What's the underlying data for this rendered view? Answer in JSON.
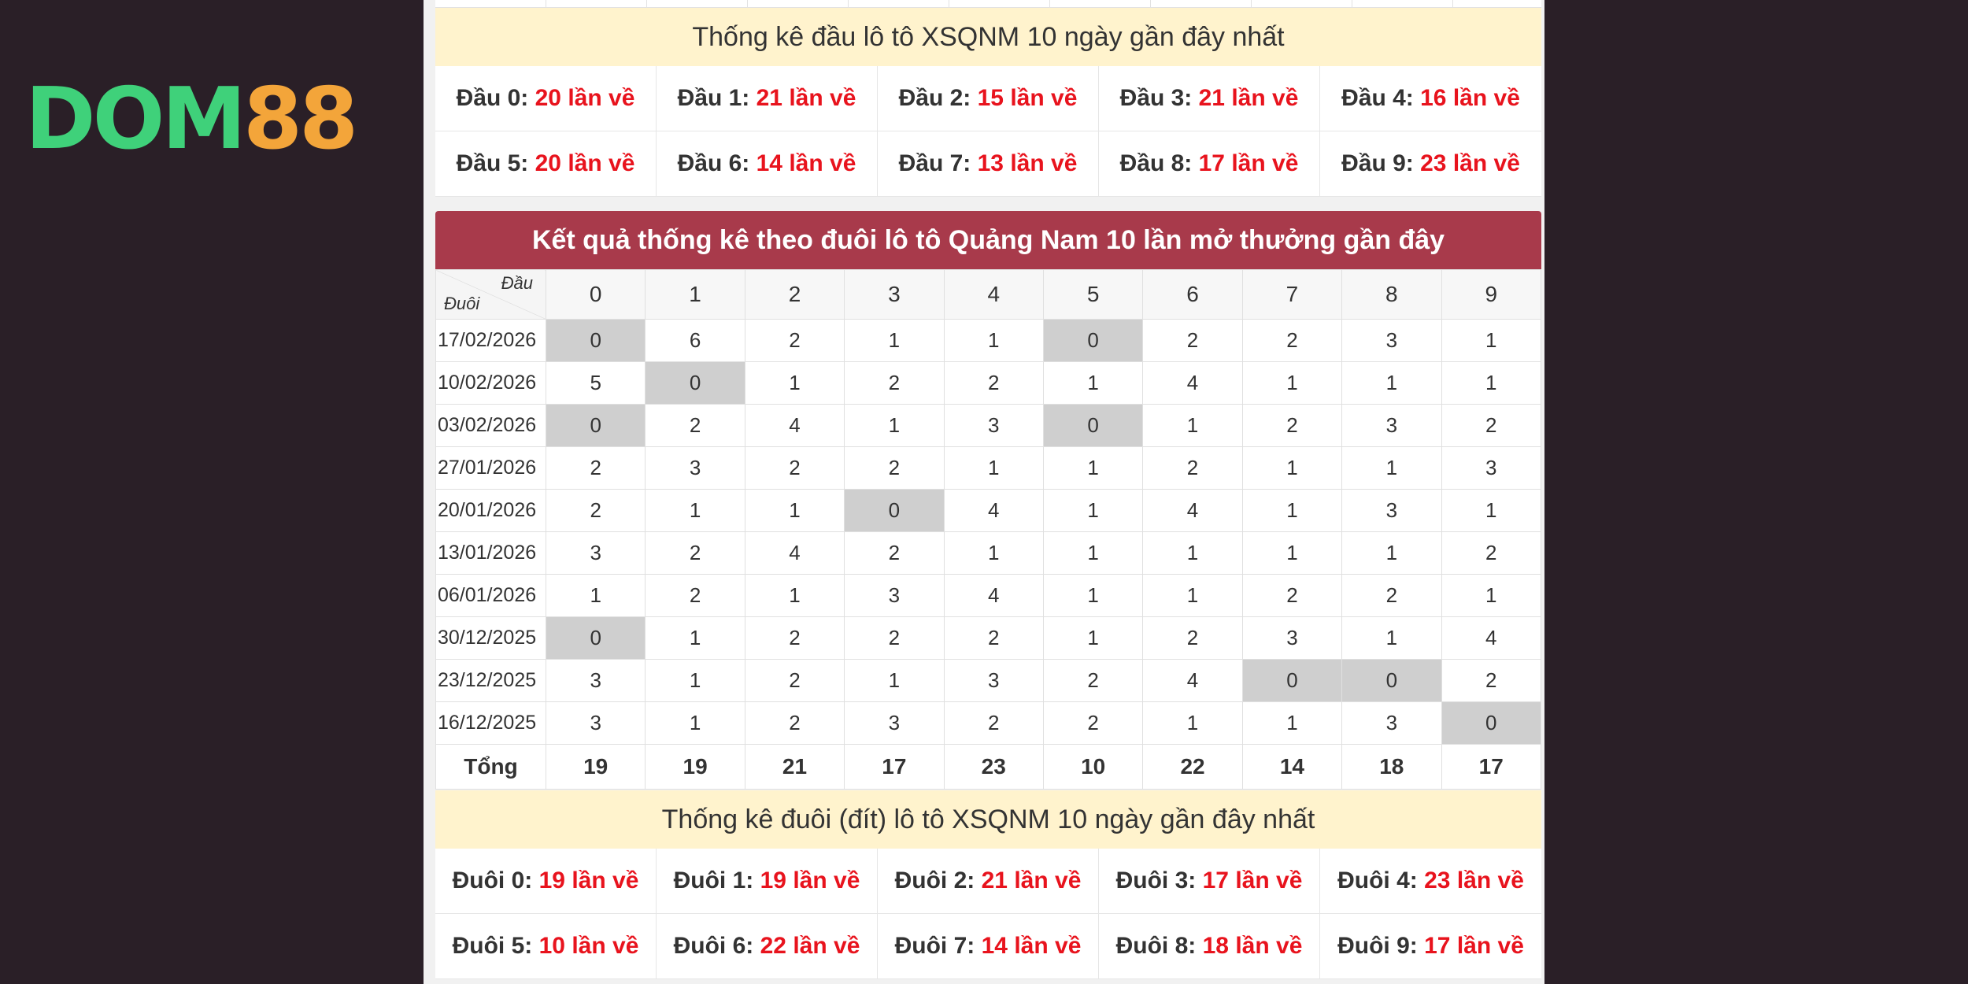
{
  "logo": {
    "part1": "DOM",
    "part2": "88"
  },
  "head_stats": {
    "title": "Thống kê đầu lô tô XSQNM 10 ngày gần đây nhất",
    "items": [
      {
        "label": "Đầu 0:",
        "value": "20 lần về"
      },
      {
        "label": "Đầu 1:",
        "value": "21 lần về"
      },
      {
        "label": "Đầu 2:",
        "value": "15 lần về"
      },
      {
        "label": "Đầu 3:",
        "value": "21 lần về"
      },
      {
        "label": "Đầu 4:",
        "value": "16 lần về"
      },
      {
        "label": "Đầu 5:",
        "value": "20 lần về"
      },
      {
        "label": "Đầu 6:",
        "value": "14 lần về"
      },
      {
        "label": "Đầu 7:",
        "value": "13 lần về"
      },
      {
        "label": "Đầu 8:",
        "value": "17 lần về"
      },
      {
        "label": "Đầu 9:",
        "value": "23 lần về"
      }
    ]
  },
  "tail_table": {
    "title": "Kết quả thống kê theo đuôi lô tô Quảng Nam 10 lần mở thưởng gần đây",
    "corner_top": "Đầu",
    "corner_bottom": "Đuôi",
    "columns": [
      "0",
      "1",
      "2",
      "3",
      "4",
      "5",
      "6",
      "7",
      "8",
      "9"
    ],
    "rows": [
      {
        "date": "17/02/2026",
        "values": [
          "0",
          "6",
          "2",
          "1",
          "1",
          "0",
          "2",
          "2",
          "3",
          "1"
        ]
      },
      {
        "date": "10/02/2026",
        "values": [
          "5",
          "0",
          "1",
          "2",
          "2",
          "1",
          "4",
          "1",
          "1",
          "1"
        ]
      },
      {
        "date": "03/02/2026",
        "values": [
          "0",
          "2",
          "4",
          "1",
          "3",
          "0",
          "1",
          "2",
          "3",
          "2"
        ]
      },
      {
        "date": "27/01/2026",
        "values": [
          "2",
          "3",
          "2",
          "2",
          "1",
          "1",
          "2",
          "1",
          "1",
          "3"
        ]
      },
      {
        "date": "20/01/2026",
        "values": [
          "2",
          "1",
          "1",
          "0",
          "4",
          "1",
          "4",
          "1",
          "3",
          "1"
        ]
      },
      {
        "date": "13/01/2026",
        "values": [
          "3",
          "2",
          "4",
          "2",
          "1",
          "1",
          "1",
          "1",
          "1",
          "2"
        ]
      },
      {
        "date": "06/01/2026",
        "values": [
          "1",
          "2",
          "1",
          "3",
          "4",
          "1",
          "1",
          "2",
          "2",
          "1"
        ]
      },
      {
        "date": "30/12/2025",
        "values": [
          "0",
          "1",
          "2",
          "2",
          "2",
          "1",
          "2",
          "3",
          "1",
          "4"
        ]
      },
      {
        "date": "23/12/2025",
        "values": [
          "3",
          "1",
          "2",
          "1",
          "3",
          "2",
          "4",
          "0",
          "0",
          "2"
        ]
      },
      {
        "date": "16/12/2025",
        "values": [
          "3",
          "1",
          "2",
          "3",
          "2",
          "2",
          "1",
          "1",
          "3",
          "0"
        ]
      }
    ],
    "total_label": "Tổng",
    "totals": [
      "19",
      "19",
      "21",
      "17",
      "23",
      "10",
      "22",
      "14",
      "18",
      "17"
    ]
  },
  "tail_stats": {
    "title": "Thống kê đuôi (đít) lô tô XSQNM 10 ngày gần đây nhất",
    "items": [
      {
        "label": "Đuôi 0:",
        "value": "19 lần về"
      },
      {
        "label": "Đuôi 1:",
        "value": "19 lần về"
      },
      {
        "label": "Đuôi 2:",
        "value": "21 lần về"
      },
      {
        "label": "Đuôi 3:",
        "value": "17 lần về"
      },
      {
        "label": "Đuôi 4:",
        "value": "23 lần về"
      },
      {
        "label": "Đuôi 5:",
        "value": "10 lần về"
      },
      {
        "label": "Đuôi 6:",
        "value": "22 lần về"
      },
      {
        "label": "Đuôi 7:",
        "value": "14 lần về"
      },
      {
        "label": "Đuôi 8:",
        "value": "18 lần về"
      },
      {
        "label": "Đuôi 9:",
        "value": "17 lần về"
      }
    ]
  },
  "colors": {
    "background": "#2a1f27",
    "title_bar": "#a83a4b",
    "banner": "#fff3cd",
    "highlight_value": "#e8131d",
    "zero_cell": "#cfcfcf",
    "logo_green": "#3fd17a",
    "logo_orange": "#f3a53a"
  }
}
